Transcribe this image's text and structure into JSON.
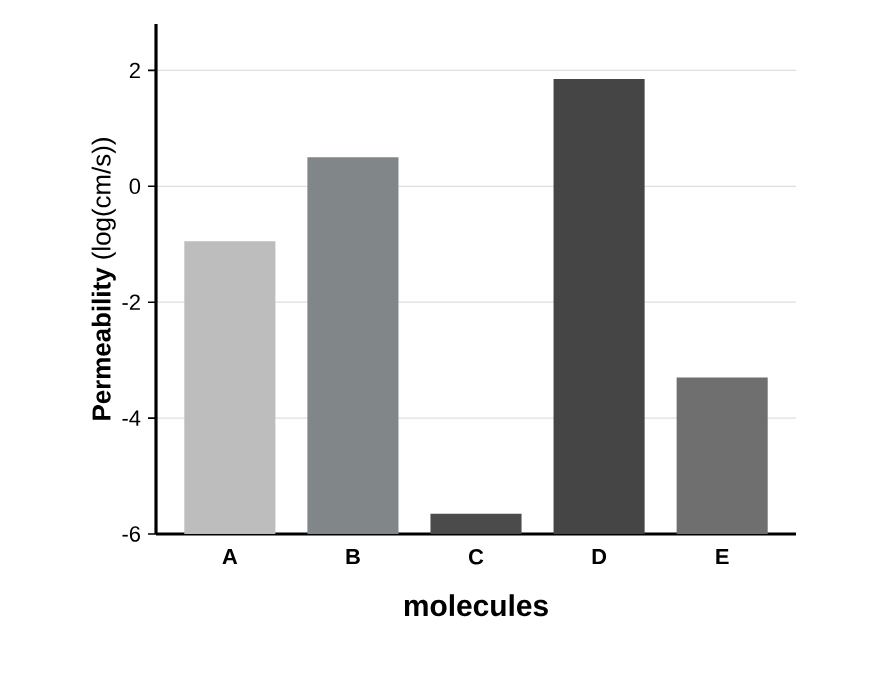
{
  "chart_data": {
    "type": "bar",
    "xlabel": "molecules",
    "ylabel": "**Permeability** (log(cm/s))",
    "categories": [
      "A",
      "B",
      "C",
      "D",
      "E"
    ],
    "base": [
      -6,
      -6,
      -6,
      -6,
      -6
    ],
    "values": [
      5.05,
      6.5,
      0.35,
      7.85,
      2.7
    ],
    "colors": [
      "#bdbdbd",
      "#818689",
      "#4b4b4b",
      "#454545",
      "#6f6f6f"
    ],
    "ylim": [
      -6,
      2.8
    ],
    "yticks": [
      -6,
      -4,
      -2,
      0,
      2
    ],
    "grid": "y"
  }
}
